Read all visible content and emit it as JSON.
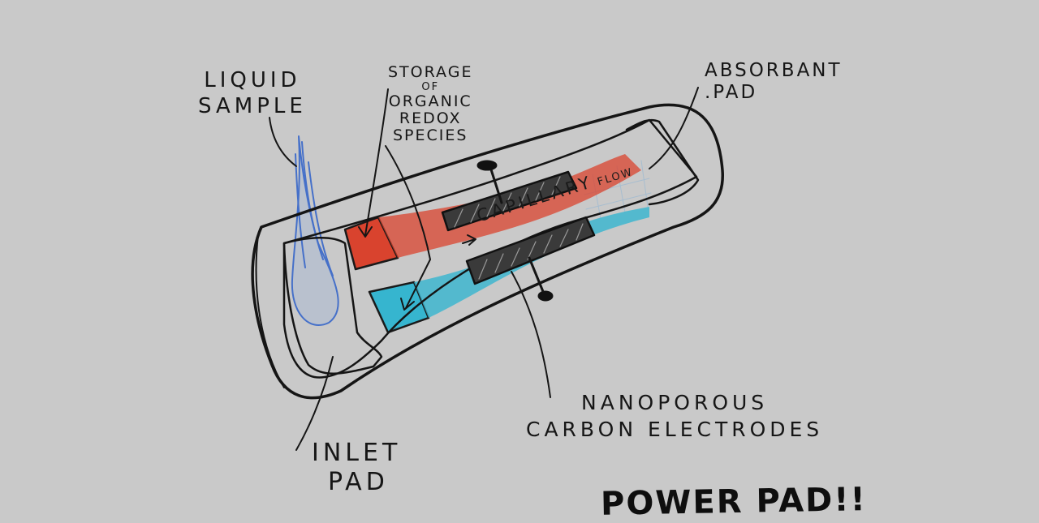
{
  "labels": {
    "liquid_sample": [
      "LIQUID",
      "SAMPLE"
    ],
    "storage": [
      "STORAGE",
      "OF",
      "ORGANIC",
      "REDOX",
      "SPECIES"
    ],
    "absorbant_pad": [
      "ABSORBANT",
      ".PAD"
    ],
    "capillary": "CAPILLARY",
    "flow": "FLOW",
    "nanoporous": [
      "NANOPOROUS",
      "CARBON ELECTRODES"
    ],
    "inlet_pad": [
      "INLET",
      "PAD"
    ],
    "title": "POWER PAD!!"
  },
  "colors": {
    "paper": "#c9c9c9",
    "ink": "#161616",
    "red_reservoir": "#d9432e",
    "cyan_reservoir": "#36b5cf",
    "sample_blue": "#2f61c9"
  }
}
